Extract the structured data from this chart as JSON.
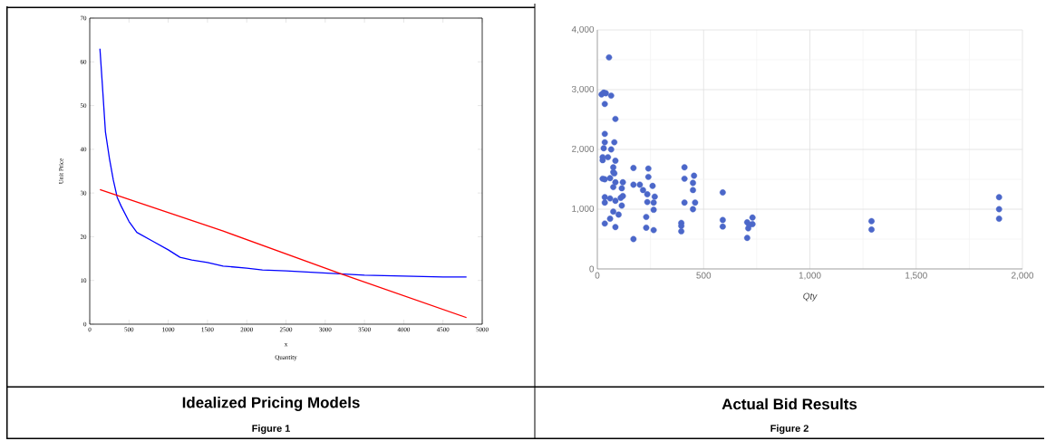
{
  "chart_data": [
    {
      "type": "line",
      "title": "Idealized Pricing Models",
      "subtitle": "Figure 1",
      "xlabel": "x",
      "ylabel": "Unit Price",
      "annotations": [
        "Quantity"
      ],
      "xlim": [
        0,
        5000
      ],
      "ylim": [
        0,
        70
      ],
      "xticks": [
        0,
        500,
        1000,
        1500,
        2000,
        2500,
        3000,
        3500,
        4000,
        4500,
        5000
      ],
      "yticks": [
        0,
        10,
        20,
        30,
        40,
        50,
        60,
        70
      ],
      "series": [
        {
          "color": "#0000ff",
          "x": [
            130,
            160,
            200,
            250,
            300,
            350,
            400,
            500,
            600,
            700,
            800,
            1000,
            1150,
            1300,
            1500,
            1700,
            2000,
            2200,
            2500,
            3000,
            3500,
            4000,
            4500,
            4800
          ],
          "values": [
            63,
            55,
            44,
            38,
            33,
            29,
            27,
            23.5,
            21,
            20,
            19,
            17,
            15.3,
            14.7,
            14.1,
            13.3,
            12.8,
            12.4,
            12.2,
            11.7,
            11.2,
            11.0,
            10.8,
            10.8
          ]
        },
        {
          "color": "#ff0000",
          "x": [
            130,
            1700,
            3200,
            4800
          ],
          "values": [
            30.8,
            21.3,
            11.5,
            1.5
          ]
        }
      ]
    },
    {
      "type": "scatter",
      "title": "Actual Bid Results",
      "subtitle": "Figure 2",
      "xlabel": "Qty",
      "color": "#4b67c9",
      "grid": true,
      "xlim": [
        0,
        2000
      ],
      "ylim": [
        0,
        4000
      ],
      "xticks": [
        0,
        500,
        {
          "value": 1000,
          "label": "1,000"
        },
        {
          "value": 1500,
          "label": "1,500"
        },
        {
          "value": 2000,
          "label": "2,000"
        }
      ],
      "yticks": [
        0,
        {
          "value": 1000,
          "label": "1,000"
        },
        {
          "value": 2000,
          "label": "2,000"
        },
        {
          "value": 3000,
          "label": "3,000"
        },
        {
          "value": 4000,
          "label": "4,000"
        }
      ],
      "x": [
        55,
        20,
        30,
        40,
        65,
        35,
        85,
        35,
        35,
        80,
        30,
        65,
        25,
        50,
        85,
        25,
        75,
        75,
        170,
        240,
        410,
        25,
        35,
        80,
        60,
        85,
        120,
        240,
        410,
        455,
        450,
        450,
        170,
        200,
        215,
        260,
        235,
        270,
        75,
        115,
        110,
        120,
        35,
        35,
        60,
        85,
        115,
        235,
        265,
        265,
        410,
        460,
        450,
        75,
        100,
        60,
        590,
        230,
        35,
        85,
        230,
        265,
        395,
        395,
        395,
        590,
        590,
        705,
        710,
        730,
        730,
        715,
        705,
        170,
        1290,
        1290,
        1890,
        1890,
        1890
      ],
      "values": [
        3540,
        2920,
        2950,
        2940,
        2900,
        2760,
        2510,
        2260,
        2120,
        2120,
        2020,
        2000,
        1870,
        1870,
        1810,
        1820,
        1700,
        1620,
        1690,
        1680,
        1700,
        1510,
        1500,
        1600,
        1520,
        1450,
        1450,
        1540,
        1510,
        1560,
        1440,
        1320,
        1410,
        1410,
        1320,
        1390,
        1250,
        1210,
        1370,
        1350,
        1190,
        1220,
        1200,
        1110,
        1180,
        1140,
        1060,
        1120,
        1110,
        990,
        1110,
        1110,
        1000,
        960,
        910,
        840,
        1280,
        870,
        760,
        700,
        690,
        650,
        770,
        720,
        630,
        820,
        710,
        780,
        680,
        860,
        750,
        740,
        520,
        500,
        800,
        660,
        1200,
        1000,
        840
      ]
    }
  ]
}
